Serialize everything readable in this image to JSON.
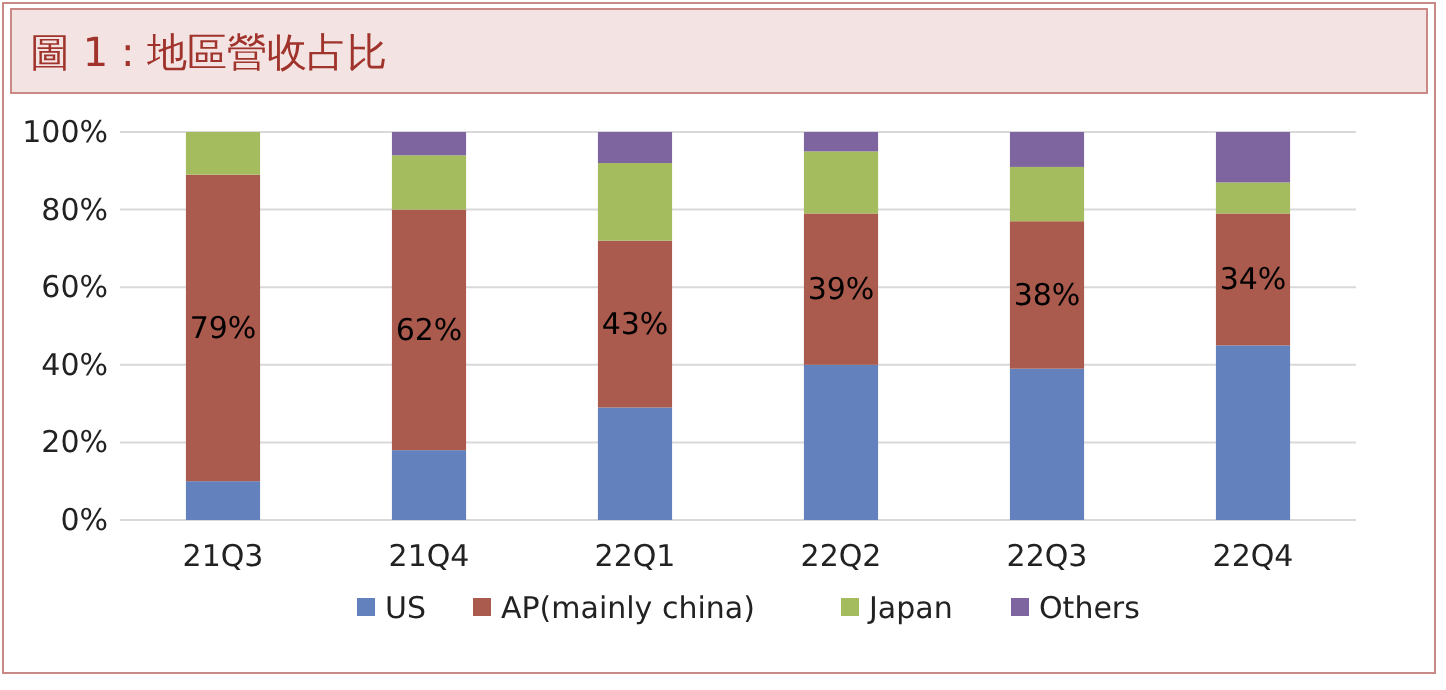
{
  "chart_data": {
    "type": "bar",
    "title": "圖 1 : 地區營收占比",
    "stacked": true,
    "categories": [
      "21Q3",
      "21Q4",
      "22Q1",
      "22Q2",
      "22Q3",
      "22Q4"
    ],
    "series": [
      {
        "name": "US",
        "color": "#6381bd",
        "values": [
          10,
          18,
          29,
          40,
          39,
          45
        ]
      },
      {
        "name": "AP(mainly china)",
        "color": "#ab5a4e",
        "values": [
          79,
          62,
          43,
          39,
          38,
          34
        ],
        "value_labels": [
          "79%",
          "62%",
          "43%",
          "39%",
          "38%",
          "34%"
        ]
      },
      {
        "name": "Japan",
        "color": "#a4bb5e",
        "values": [
          11,
          14,
          20,
          16,
          14,
          8
        ]
      },
      {
        "name": "Others",
        "color": "#7f65a0",
        "values": [
          0,
          6,
          8,
          5,
          9,
          13
        ]
      }
    ],
    "ylim": [
      0,
      100
    ],
    "yticks": [
      {
        "value": 0,
        "label": "0%"
      },
      {
        "value": 20,
        "label": "20%"
      },
      {
        "value": 40,
        "label": "40%"
      },
      {
        "value": 60,
        "label": "60%"
      },
      {
        "value": 80,
        "label": "80%"
      },
      {
        "value": 100,
        "label": "100%"
      }
    ],
    "grid": "y",
    "legend": "bottom"
  }
}
